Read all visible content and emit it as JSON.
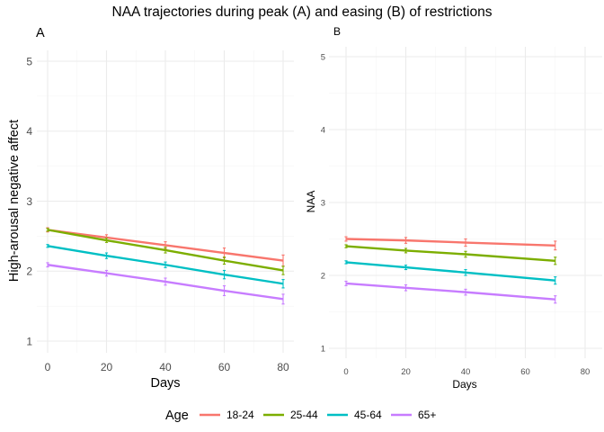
{
  "figure_title": "NAA trajectories during peak (A) and easing (B) of restrictions",
  "legend": {
    "title": "Age",
    "placement": "bottom",
    "entries": [
      {
        "label": "18-24",
        "color": "#F8766D"
      },
      {
        "label": "25-44",
        "color": "#7CAE00"
      },
      {
        "label": "45-64",
        "color": "#00BFC4"
      },
      {
        "label": "65+",
        "color": "#C77CFF"
      }
    ]
  },
  "chart_data": [
    {
      "type": "line",
      "panel_label": "A",
      "xlabel": "Days",
      "ylabel": "High-arousal negative affect",
      "xlim": [
        0,
        80
      ],
      "ylim": [
        1,
        5
      ],
      "grid": true,
      "x_ticks": [
        0,
        20,
        40,
        60,
        80
      ],
      "y_ticks": [
        1,
        2,
        3,
        4,
        5
      ],
      "x_tick_labels": [
        "0",
        "20",
        "40",
        "60",
        "80"
      ],
      "y_tick_labels": [
        "1",
        "2",
        "3",
        "4",
        "5"
      ],
      "series": [
        {
          "name": "18-24",
          "color": "#F8766D",
          "x": [
            0,
            20,
            40,
            60,
            80
          ],
          "y": [
            2.59,
            2.48,
            2.37,
            2.26,
            2.15
          ],
          "err": [
            0.03,
            0.04,
            0.05,
            0.07,
            0.08
          ]
        },
        {
          "name": "25-44",
          "color": "#7CAE00",
          "x": [
            0,
            20,
            40,
            60,
            80
          ],
          "y": [
            2.59,
            2.44,
            2.3,
            2.15,
            2.01
          ],
          "err": [
            0.02,
            0.03,
            0.04,
            0.05,
            0.06
          ]
        },
        {
          "name": "45-64",
          "color": "#00BFC4",
          "x": [
            0,
            20,
            40,
            60,
            80
          ],
          "y": [
            2.36,
            2.22,
            2.09,
            1.95,
            1.82
          ],
          "err": [
            0.02,
            0.04,
            0.04,
            0.06,
            0.06
          ]
        },
        {
          "name": "65+",
          "color": "#C77CFF",
          "x": [
            0,
            20,
            40,
            60,
            80
          ],
          "y": [
            2.09,
            1.97,
            1.85,
            1.72,
            1.6
          ],
          "err": [
            0.03,
            0.04,
            0.05,
            0.07,
            0.07
          ]
        }
      ]
    },
    {
      "type": "line",
      "panel_label": "B",
      "xlabel": "Days",
      "ylabel": "NAA",
      "xlim": [
        0,
        80
      ],
      "ylim": [
        1,
        5
      ],
      "grid": true,
      "x_ticks": [
        0,
        20,
        40,
        60,
        80
      ],
      "y_ticks": [
        1,
        2,
        3,
        4,
        5
      ],
      "x_tick_labels": [
        "0",
        "20",
        "40",
        "60",
        "80"
      ],
      "y_tick_labels": [
        "1",
        "2",
        "3",
        "4",
        "5"
      ],
      "series": [
        {
          "name": "18-24",
          "color": "#F8766D",
          "x": [
            0,
            20,
            40,
            70
          ],
          "y": [
            2.5,
            2.48,
            2.45,
            2.41
          ],
          "err": [
            0.03,
            0.04,
            0.05,
            0.06
          ]
        },
        {
          "name": "25-44",
          "color": "#7CAE00",
          "x": [
            0,
            20,
            40,
            70
          ],
          "y": [
            2.4,
            2.34,
            2.29,
            2.2
          ],
          "err": [
            0.02,
            0.03,
            0.04,
            0.05
          ]
        },
        {
          "name": "45-64",
          "color": "#00BFC4",
          "x": [
            0,
            20,
            40,
            70
          ],
          "y": [
            2.18,
            2.11,
            2.04,
            1.93
          ],
          "err": [
            0.02,
            0.03,
            0.04,
            0.05
          ]
        },
        {
          "name": "65+",
          "color": "#C77CFF",
          "x": [
            0,
            20,
            40,
            70
          ],
          "y": [
            1.89,
            1.83,
            1.77,
            1.67
          ],
          "err": [
            0.03,
            0.04,
            0.04,
            0.05
          ]
        }
      ]
    }
  ]
}
